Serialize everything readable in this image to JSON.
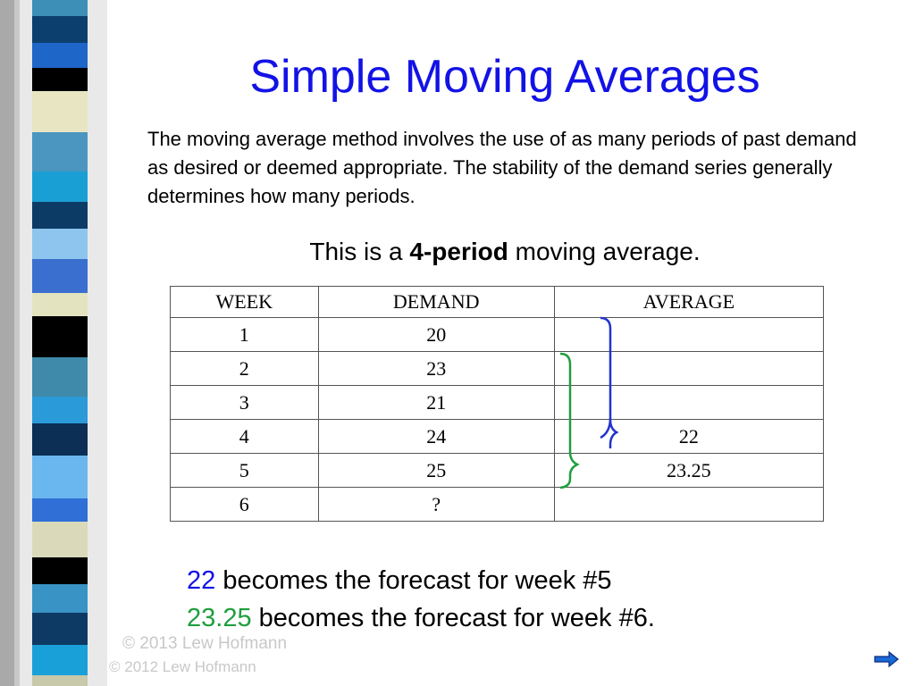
{
  "title": "Simple Moving Averages",
  "intro": "The moving average method involves the use of as many periods of past demand as desired or deemed appropriate. The stability of the demand series generally determines how many periods.",
  "subtitle": {
    "before": "This is a ",
    "bold": "4-period",
    "after": " moving average."
  },
  "table": {
    "headers": [
      "WEEK",
      "DEMAND",
      "AVERAGE"
    ],
    "rows": [
      {
        "week": "1",
        "demand": "20",
        "average": ""
      },
      {
        "week": "2",
        "demand": "23",
        "average": ""
      },
      {
        "week": "3",
        "demand": "21",
        "average": ""
      },
      {
        "week": "4",
        "demand": "24",
        "average": "22"
      },
      {
        "week": "5",
        "demand": "25",
        "average": "23.25"
      },
      {
        "week": "6",
        "demand": "?",
        "average": ""
      }
    ]
  },
  "forecast": [
    {
      "value": "22",
      "text": " becomes the forecast for week #5"
    },
    {
      "value": "23.25",
      "text": " becomes the forecast for week #6."
    }
  ],
  "copyright": {
    "line1": "© 2013 Lew Hofmann",
    "line2": "© 2012 Lew Hofmann"
  },
  "colors": {
    "title": "#1212e6",
    "avg_first": "#1a6ad6",
    "avg_second": "#1e9e3e",
    "bracket_blue": "#2233cc",
    "bracket_green": "#1e9e3e"
  },
  "icons": {
    "nav": "right-arrow-icon"
  }
}
